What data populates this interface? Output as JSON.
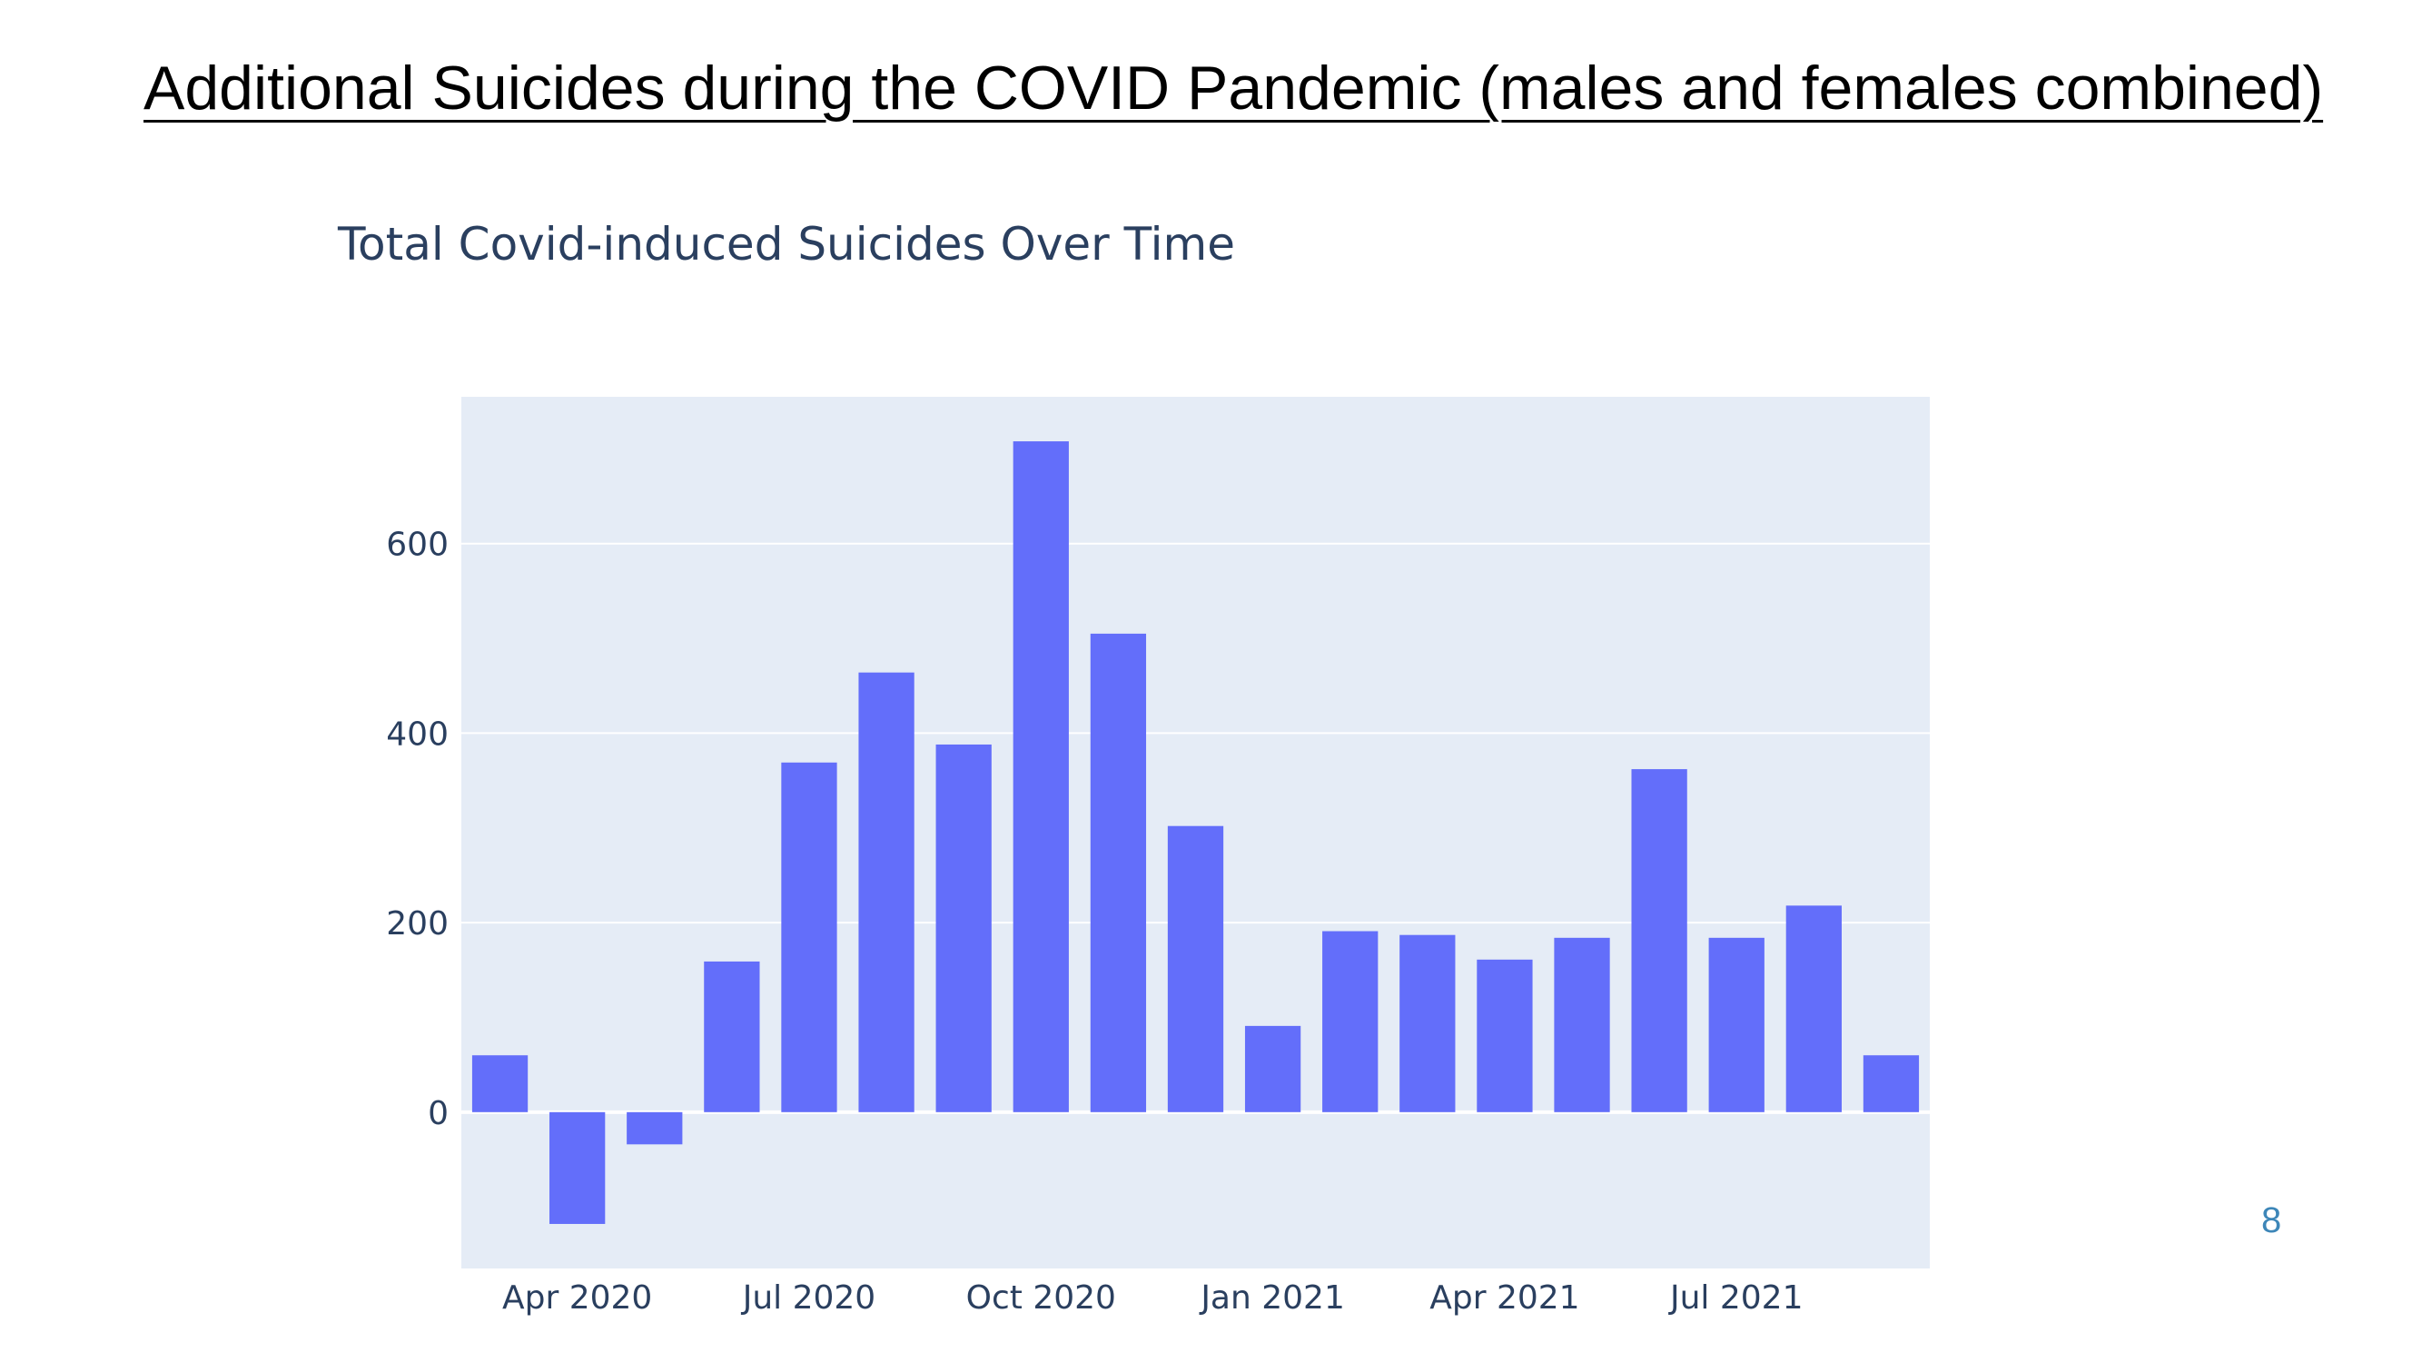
{
  "slide": {
    "title": "Additional Suicides during the COVID Pandemic (males and females combined)",
    "page_number": "8"
  },
  "colors": {
    "bar": "#636efa",
    "plot_background": "#e5ecf6",
    "grid": "#ffffff",
    "text": "#2a3f5f",
    "page_number": "#3d86b8"
  },
  "chart_data": {
    "type": "bar",
    "title": "Total Covid-induced Suicides Over Time",
    "xlabel": "",
    "ylabel": "",
    "x": [
      "2020-03",
      "2020-04",
      "2020-05",
      "2020-06",
      "2020-07",
      "2020-08",
      "2020-09",
      "2020-10",
      "2020-11",
      "2020-12",
      "2021-01",
      "2021-02",
      "2021-03",
      "2021-04",
      "2021-05",
      "2021-06",
      "2021-07",
      "2021-08",
      "2021-09"
    ],
    "values": [
      60,
      -118,
      -34,
      159,
      369,
      464,
      388,
      708,
      505,
      302,
      91,
      191,
      187,
      161,
      184,
      362,
      184,
      218,
      60
    ],
    "ylim": [
      -165,
      755
    ],
    "yticks": [
      0,
      200,
      400,
      600
    ],
    "ytick_labels": [
      "0",
      "200",
      "400",
      "600"
    ],
    "xticks": [
      "2020-04",
      "2020-07",
      "2020-10",
      "2021-01",
      "2021-04",
      "2021-07"
    ],
    "xtick_labels": [
      "Apr 2020",
      "Jul 2020",
      "Oct 2020",
      "Jan 2021",
      "Apr 2021",
      "Jul 2021"
    ],
    "grid": true,
    "legend": false
  }
}
